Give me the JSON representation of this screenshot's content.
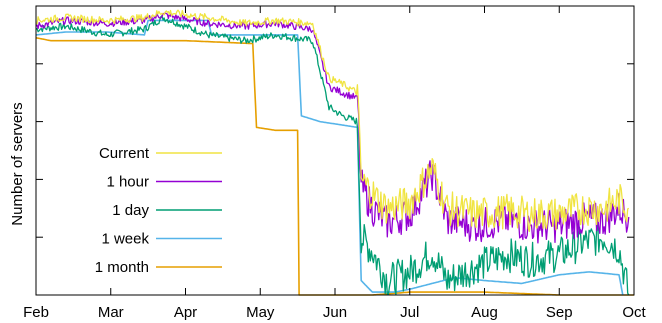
{
  "chart_data": {
    "type": "line",
    "title": "",
    "xlabel": "",
    "ylabel": "Number of servers",
    "x_ticks": [
      "Feb",
      "Mar",
      "Apr",
      "May",
      "Jun",
      "Jul",
      "Aug",
      "Sep",
      "Oct"
    ],
    "xlim": [
      0,
      8
    ],
    "ylim": [
      0,
      1
    ],
    "y_tick_labels_visible": false,
    "grid": false,
    "legend_position": "left",
    "series": [
      {
        "name": "Current",
        "color": "#f0e442",
        "points": [
          [
            0,
            0.95
          ],
          [
            0.4,
            0.96
          ],
          [
            0.95,
            0.95
          ],
          [
            1.45,
            0.96
          ],
          [
            1.7,
            0.98
          ],
          [
            2.3,
            0.96
          ],
          [
            2.8,
            0.94
          ],
          [
            3.2,
            0.95
          ],
          [
            3.7,
            0.94
          ],
          [
            3.92,
            0.75
          ],
          [
            4.1,
            0.73
          ],
          [
            4.3,
            0.7
          ],
          [
            4.35,
            0.4
          ],
          [
            4.5,
            0.35
          ],
          [
            4.7,
            0.3
          ],
          [
            5.0,
            0.32
          ],
          [
            5.3,
            0.44
          ],
          [
            5.5,
            0.3
          ],
          [
            5.9,
            0.28
          ],
          [
            6.3,
            0.29
          ],
          [
            6.6,
            0.28
          ],
          [
            7.0,
            0.28
          ],
          [
            7.3,
            0.3
          ],
          [
            7.6,
            0.3
          ],
          [
            7.8,
            0.33
          ],
          [
            7.93,
            0.3
          ]
        ]
      },
      {
        "name": "1 hour",
        "color": "#9400d3",
        "points": [
          [
            0,
            0.93
          ],
          [
            0.4,
            0.95
          ],
          [
            0.95,
            0.94
          ],
          [
            1.45,
            0.95
          ],
          [
            1.7,
            0.97
          ],
          [
            2.3,
            0.94
          ],
          [
            2.8,
            0.93
          ],
          [
            3.2,
            0.94
          ],
          [
            3.7,
            0.92
          ],
          [
            3.92,
            0.72
          ],
          [
            4.1,
            0.7
          ],
          [
            4.3,
            0.68
          ],
          [
            4.35,
            0.38
          ],
          [
            4.5,
            0.3
          ],
          [
            4.7,
            0.25
          ],
          [
            5.0,
            0.28
          ],
          [
            5.3,
            0.42
          ],
          [
            5.5,
            0.26
          ],
          [
            5.9,
            0.24
          ],
          [
            6.3,
            0.26
          ],
          [
            6.6,
            0.24
          ],
          [
            7.0,
            0.24
          ],
          [
            7.3,
            0.26
          ],
          [
            7.6,
            0.26
          ],
          [
            7.8,
            0.3
          ],
          [
            7.93,
            0.27
          ]
        ]
      },
      {
        "name": "1 day",
        "color": "#009e73",
        "points": [
          [
            0,
            0.92
          ],
          [
            0.4,
            0.93
          ],
          [
            0.95,
            0.9
          ],
          [
            1.45,
            0.92
          ],
          [
            1.7,
            0.96
          ],
          [
            2.3,
            0.9
          ],
          [
            2.8,
            0.88
          ],
          [
            3.2,
            0.9
          ],
          [
            3.7,
            0.88
          ],
          [
            3.92,
            0.65
          ],
          [
            4.1,
            0.62
          ],
          [
            4.3,
            0.6
          ],
          [
            4.35,
            0.2
          ],
          [
            4.5,
            0.15
          ],
          [
            4.7,
            0.05
          ],
          [
            5.0,
            0.08
          ],
          [
            5.3,
            0.15
          ],
          [
            5.5,
            0.05
          ],
          [
            5.9,
            0.1
          ],
          [
            6.3,
            0.14
          ],
          [
            6.6,
            0.12
          ],
          [
            7.0,
            0.14
          ],
          [
            7.3,
            0.18
          ],
          [
            7.6,
            0.2
          ],
          [
            7.8,
            0.16
          ],
          [
            7.93,
            0.0
          ]
        ]
      },
      {
        "name": "1 week",
        "color": "#56b4e9",
        "points": [
          [
            0,
            0.9
          ],
          [
            0.4,
            0.91
          ],
          [
            0.95,
            0.91
          ],
          [
            1.45,
            0.9
          ],
          [
            1.5,
            0.95
          ],
          [
            2.3,
            0.95
          ],
          [
            2.35,
            0.9
          ],
          [
            3.2,
            0.9
          ],
          [
            3.5,
            0.9
          ],
          [
            3.55,
            0.62
          ],
          [
            3.8,
            0.6
          ],
          [
            4.3,
            0.58
          ],
          [
            4.35,
            0.05
          ],
          [
            4.5,
            0.01
          ],
          [
            4.8,
            0.01
          ],
          [
            5.0,
            0.02
          ],
          [
            5.3,
            0.04
          ],
          [
            5.6,
            0.06
          ],
          [
            6.0,
            0.05
          ],
          [
            6.5,
            0.04
          ],
          [
            7.0,
            0.07
          ],
          [
            7.4,
            0.08
          ],
          [
            7.8,
            0.07
          ],
          [
            7.85,
            0.0
          ]
        ]
      },
      {
        "name": "1 month",
        "color": "#e69f00",
        "points": [
          [
            0,
            0.89
          ],
          [
            0.2,
            0.88
          ],
          [
            1.0,
            0.88
          ],
          [
            2.0,
            0.88
          ],
          [
            2.9,
            0.87
          ],
          [
            2.95,
            0.58
          ],
          [
            3.2,
            0.57
          ],
          [
            3.5,
            0.57
          ],
          [
            3.52,
            0.0
          ],
          [
            3.7,
            0.0
          ],
          [
            4.5,
            0.0
          ],
          [
            5.0,
            0.01
          ],
          [
            6.0,
            0.01
          ],
          [
            7.0,
            0.0
          ],
          [
            8.0,
            0.0
          ]
        ]
      }
    ]
  }
}
